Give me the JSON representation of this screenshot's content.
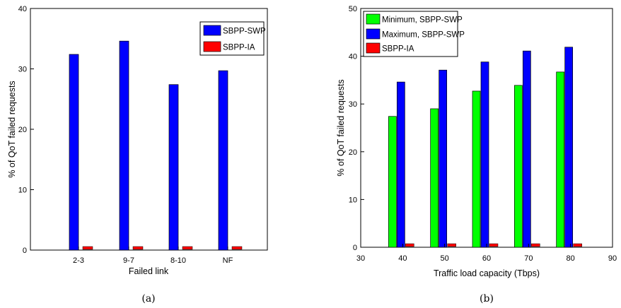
{
  "chart_data": [
    {
      "type": "bar",
      "caption": "(a)",
      "xlabel": "Failed link",
      "ylabel": "% of QoT failed requests",
      "ylim": [
        0,
        40
      ],
      "yticks": [
        "0",
        "10",
        "20",
        "30",
        "40"
      ],
      "categories": [
        "2-3",
        "9-7",
        "8-10",
        "NF"
      ],
      "grid": false,
      "legend_position": "top-right",
      "series": [
        {
          "name": "SBPP-SWP",
          "color": "#0000ff",
          "values": [
            32.4,
            34.6,
            27.4,
            29.7
          ]
        },
        {
          "name": "SBPP-IA",
          "color": "#ff0000",
          "values": [
            0.3,
            0.3,
            0.3,
            0.3
          ]
        }
      ]
    },
    {
      "type": "bar",
      "caption": "(b)",
      "xlabel": "Traffic load capacity (Tbps)",
      "ylabel": "% of QoT failed requests",
      "xlim": [
        30,
        90
      ],
      "ylim": [
        0,
        50
      ],
      "xticks": [
        "30",
        "40",
        "50",
        "60",
        "70",
        "80",
        "90"
      ],
      "yticks": [
        "0",
        "10",
        "20",
        "30",
        "40",
        "50"
      ],
      "categories": [
        "40",
        "50",
        "60",
        "70",
        "80"
      ],
      "grid": false,
      "legend_position": "top-left",
      "series": [
        {
          "name": "Minimum, SBPP-SWP",
          "color": "#00ff00",
          "values": [
            27.4,
            29.0,
            32.7,
            33.9,
            36.7
          ]
        },
        {
          "name": "Maximum, SBPP-SWP",
          "color": "#0000ff",
          "values": [
            34.6,
            37.1,
            38.8,
            41.1,
            41.9
          ]
        },
        {
          "name": "SBPP-IA",
          "color": "#ff0000",
          "values": [
            0.3,
            0.3,
            0.3,
            0.3,
            0.3
          ]
        }
      ]
    }
  ]
}
